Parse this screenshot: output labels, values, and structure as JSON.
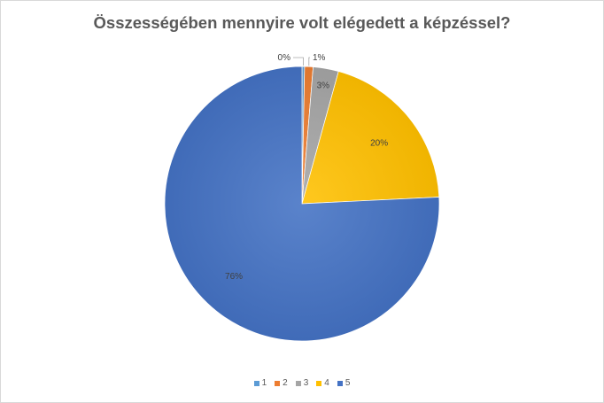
{
  "chart_data": {
    "type": "pie",
    "title": "Összességében mennyire volt elégedett a képzéssel?",
    "categories": [
      "1",
      "2",
      "3",
      "4",
      "5"
    ],
    "values": [
      0.3,
      1,
      3,
      20,
      76
    ],
    "data_labels": [
      "0%",
      "1%",
      "3%",
      "20%",
      "76%"
    ],
    "colors": [
      "#5b9bd5",
      "#ed7d31",
      "#a5a5a5",
      "#ffc000",
      "#4472c4"
    ],
    "legend_position": "bottom",
    "start_angle_deg": 0,
    "direction": "clockwise"
  }
}
